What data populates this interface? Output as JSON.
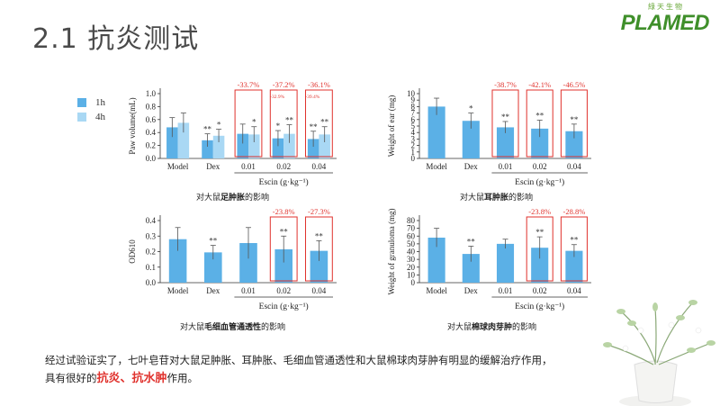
{
  "slide": {
    "title": "2.1  抗炎测试",
    "logo_tagline": "綠天生物",
    "logo_text": "PLAMED"
  },
  "legend": [
    {
      "label": "1h",
      "color": "#5bb0e6"
    },
    {
      "label": "4h",
      "color": "#a9d8f4"
    }
  ],
  "captions": [
    {
      "pre": "对大鼠",
      "bold": "足肿胀",
      "post": "的影响"
    },
    {
      "pre": "对大鼠",
      "bold": "耳肿胀",
      "post": "的影响"
    },
    {
      "pre": "对大鼠",
      "bold": "毛细血管通透性",
      "post": "的影响"
    },
    {
      "pre": "对大鼠",
      "bold": "棉球肉芽肿",
      "post": "的影响"
    }
  ],
  "conclusion": {
    "line1": "经过试验证实了，七叶皂苷对大鼠足肿胀、耳肿胀、毛细血管通透性和大鼠棉球肉芽肿有明显的缓解治疗作用，",
    "line2_pre": "具有很好的",
    "line2_hl": "抗炎、抗水肿",
    "line2_post": "作用。"
  },
  "chart_data": [
    {
      "type": "bar",
      "title": "对大鼠足肿胀的影响",
      "categories": [
        "Model",
        "Dex",
        "0.01",
        "0.02",
        "0.04"
      ],
      "group_label": "Escin (g·kg⁻¹)",
      "ylabel": "Paw volume(mL)",
      "ylim": [
        0,
        1.0
      ],
      "yticks": [
        "0.0",
        "0.2",
        "0.4",
        "0.6",
        "0.8",
        "1.0"
      ],
      "series": [
        {
          "name": "1h",
          "values": [
            0.48,
            0.28,
            0.38,
            0.31,
            0.3
          ],
          "errors": [
            0.15,
            0.1,
            0.15,
            0.12,
            0.12
          ],
          "sig": [
            "",
            "**",
            "",
            "*",
            "**"
          ]
        },
        {
          "name": "4h",
          "values": [
            0.55,
            0.35,
            0.37,
            0.38,
            0.37
          ],
          "errors": [
            0.15,
            0.1,
            0.12,
            0.14,
            0.12
          ],
          "sig": [
            "",
            "*",
            "*",
            "**",
            "**"
          ]
        }
      ],
      "annotations": [
        "",
        "",
        "-33.7%",
        "-37.2%",
        "-36.1%"
      ],
      "small_annotations": [
        "",
        "",
        "",
        "-32.9%",
        "-39.4%"
      ]
    },
    {
      "type": "bar",
      "title": "对大鼠耳肿胀的影响",
      "categories": [
        "Model",
        "Dex",
        "0.01",
        "0.02",
        "0.04"
      ],
      "group_label": "Escin (g·kg⁻¹)",
      "ylabel": "Weight of ear (mg)",
      "ylim": [
        0,
        10
      ],
      "yticks": [
        "0",
        "1",
        "2",
        "3",
        "4",
        "5",
        "6",
        "7",
        "8",
        "9",
        "10"
      ],
      "series": [
        {
          "name": "1h",
          "values": [
            8.0,
            5.8,
            4.8,
            4.6,
            4.2
          ],
          "errors": [
            1.3,
            1.2,
            0.9,
            1.3,
            1.1
          ],
          "sig": [
            "",
            "*",
            "**",
            "**",
            "**"
          ]
        }
      ],
      "annotations": [
        "",
        "",
        "-38.7%",
        "-42.1%",
        "-46.5%"
      ]
    },
    {
      "type": "bar",
      "title": "对大鼠毛细血管通透性的影响",
      "categories": [
        "Model",
        "Dex",
        "0.01",
        "0.02",
        "0.04"
      ],
      "group_label": "Escin (g·kg⁻¹)",
      "ylabel": "OD610",
      "ylim": [
        0,
        0.4
      ],
      "yticks": [
        "0.0",
        "0.1",
        "0.2",
        "0.3",
        "0.4"
      ],
      "series": [
        {
          "name": "1h",
          "values": [
            0.28,
            0.195,
            0.255,
            0.215,
            0.205
          ],
          "errors": [
            0.075,
            0.045,
            0.1,
            0.085,
            0.065
          ],
          "sig": [
            "",
            "**",
            "",
            "**",
            "**"
          ]
        }
      ],
      "annotations": [
        "",
        "",
        "",
        "-23.8%",
        "-27.3%"
      ]
    },
    {
      "type": "bar",
      "title": "对大鼠棉球肉芽肿的影响",
      "categories": [
        "Model",
        "Dex",
        "0.01",
        "0.02",
        "0.04"
      ],
      "group_label": "Escin (g·kg⁻¹)",
      "ylabel": "Weight of granuloma (mg)",
      "ylim": [
        0,
        80
      ],
      "yticks": [
        "0",
        "10",
        "20",
        "30",
        "40",
        "50",
        "60",
        "70",
        "80"
      ],
      "series": [
        {
          "name": "1h",
          "values": [
            58,
            37,
            50,
            45,
            41
          ],
          "errors": [
            12,
            10,
            6,
            14,
            8
          ],
          "sig": [
            "",
            "**",
            "",
            "**",
            "**"
          ]
        }
      ],
      "annotations": [
        "",
        "",
        "",
        "-23.8%",
        "-28.8%"
      ]
    }
  ]
}
